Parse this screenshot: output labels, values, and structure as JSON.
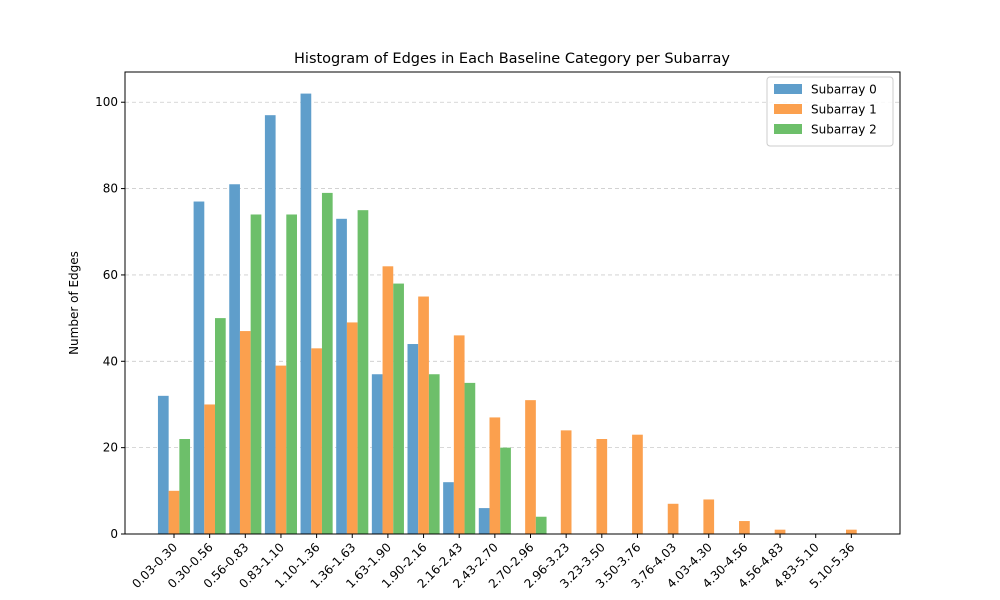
{
  "chart_data": {
    "type": "bar",
    "title": "Histogram of Edges in Each Baseline Category per Subarray",
    "xlabel": "",
    "ylabel": "Number of Edges",
    "ylim": [
      0,
      107
    ],
    "yticks": [
      0,
      20,
      40,
      60,
      80,
      100
    ],
    "grid": "y-dashed",
    "legend_position": "top-right",
    "categories": [
      "0.03-0.30",
      "0.30-0.56",
      "0.56-0.83",
      "0.83-1.10",
      "1.10-1.36",
      "1.36-1.63",
      "1.63-1.90",
      "1.90-2.16",
      "2.16-2.43",
      "2.43-2.70",
      "2.70-2.96",
      "2.96-3.23",
      "3.23-3.50",
      "3.50-3.76",
      "3.76-4.03",
      "4.03-4.30",
      "4.30-4.56",
      "4.56-4.83",
      "4.83-5.10",
      "5.10-5.36"
    ],
    "series": [
      {
        "name": "Subarray 0",
        "color": "#5f9ecb",
        "values": [
          32,
          77,
          81,
          97,
          102,
          73,
          37,
          44,
          12,
          6,
          0,
          0,
          0,
          0,
          0,
          0,
          0,
          0,
          0,
          0
        ]
      },
      {
        "name": "Subarray 1",
        "color": "#fba04e",
        "values": [
          10,
          30,
          47,
          39,
          43,
          49,
          62,
          55,
          46,
          27,
          31,
          24,
          22,
          23,
          7,
          8,
          3,
          1,
          0,
          1
        ]
      },
      {
        "name": "Subarray 2",
        "color": "#6dbf6a",
        "values": [
          22,
          50,
          74,
          74,
          79,
          75,
          58,
          37,
          35,
          20,
          4,
          0,
          0,
          0,
          0,
          0,
          0,
          0,
          0,
          0
        ]
      }
    ]
  }
}
